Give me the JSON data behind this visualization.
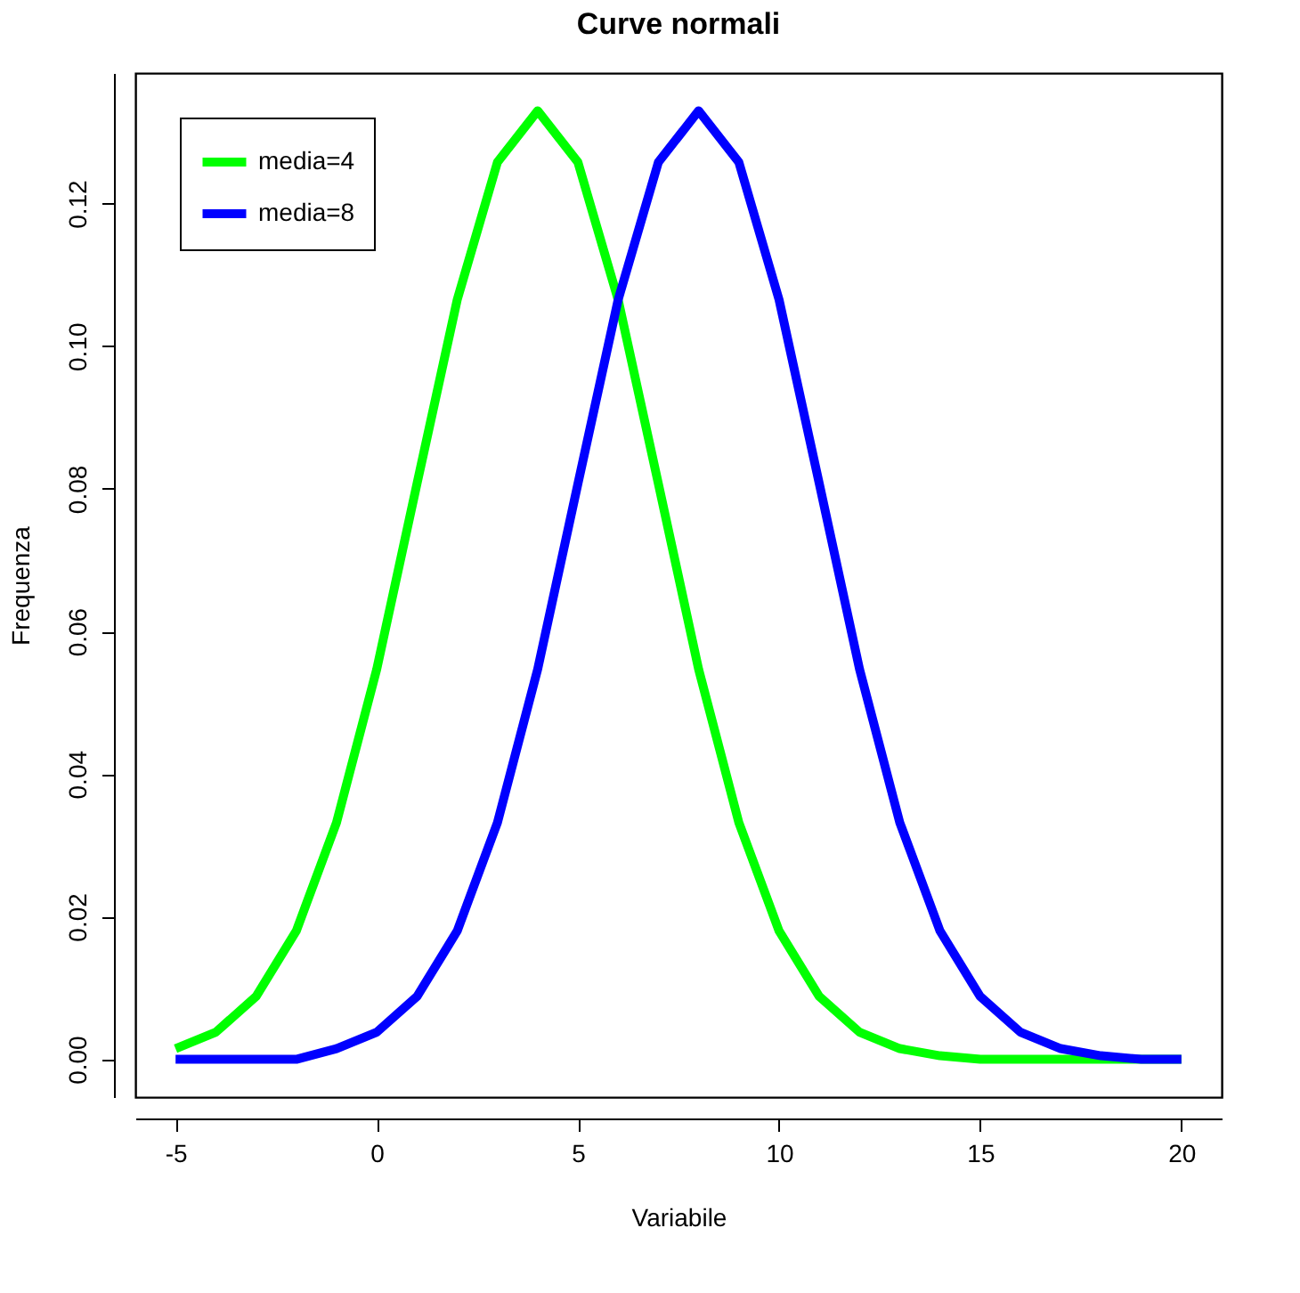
{
  "chart_data": {
    "type": "line",
    "title": "Curve normali",
    "xlabel": "Variabile",
    "ylabel": "Frequenza",
    "x": [
      -5,
      -4,
      -3,
      -2,
      -1,
      0,
      1,
      2,
      3,
      4,
      5,
      6,
      7,
      8,
      9,
      10,
      11,
      12,
      13,
      14,
      15,
      16,
      17,
      18,
      19,
      20
    ],
    "series": [
      {
        "name": "media=4",
        "color": "#00ff00",
        "values": [
          0.0015,
          0.0038,
          0.0088,
          0.018,
          0.0332,
          0.0547,
          0.0807,
          0.1065,
          0.1258,
          0.133,
          0.1258,
          0.1065,
          0.0807,
          0.0547,
          0.0332,
          0.018,
          0.0088,
          0.0038,
          0.0015,
          0.0005,
          0,
          0,
          0,
          0,
          0,
          0
        ]
      },
      {
        "name": "media=8",
        "color": "#0000ff",
        "values": [
          0,
          0,
          0,
          0,
          0.0015,
          0.0038,
          0.0088,
          0.018,
          0.0332,
          0.0547,
          0.0807,
          0.1065,
          0.1258,
          0.133,
          0.1258,
          0.1065,
          0.0807,
          0.0547,
          0.0332,
          0.018,
          0.0088,
          0.0038,
          0.0015,
          0.0005,
          0,
          0
        ]
      }
    ],
    "xlim": [
      -6,
      21
    ],
    "ylim": [
      -0.0053,
      0.1383
    ],
    "xticks": [
      -5,
      0,
      5,
      10,
      15,
      20
    ],
    "yticks": [
      {
        "value": 0,
        "label": "0.00"
      },
      {
        "value": 0.02,
        "label": "0.02"
      },
      {
        "value": 0.04,
        "label": "0.04"
      },
      {
        "value": 0.06,
        "label": "0.06"
      },
      {
        "value": 0.08,
        "label": "0.08"
      },
      {
        "value": 0.1,
        "label": "0.10"
      },
      {
        "value": 0.12,
        "label": "0.12"
      }
    ],
    "legend": "top left",
    "grid": false,
    "line_style": "solid",
    "marker": "none"
  }
}
